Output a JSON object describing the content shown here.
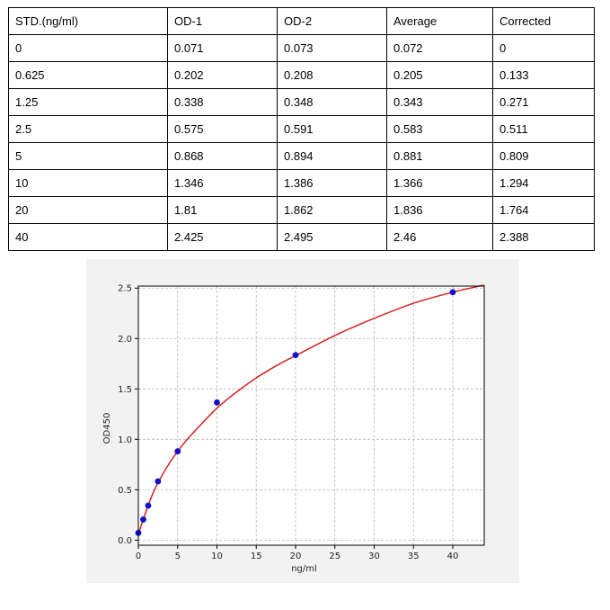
{
  "table": {
    "headers": [
      "STD.(ng/ml)",
      "OD-1",
      "OD-2",
      "Average",
      "Corrected"
    ],
    "rows": [
      [
        "0",
        "0.071",
        "0.073",
        "0.072",
        "0"
      ],
      [
        "0.625",
        "0.202",
        "0.208",
        "0.205",
        "0.133"
      ],
      [
        "1.25",
        "0.338",
        "0.348",
        "0.343",
        "0.271"
      ],
      [
        "2.5",
        "0.575",
        "0.591",
        "0.583",
        "0.511"
      ],
      [
        "5",
        "0.868",
        "0.894",
        "0.881",
        "0.809"
      ],
      [
        "10",
        "1.346",
        "1.386",
        "1.366",
        "1.294"
      ],
      [
        "20",
        "1.81",
        "1.862",
        "1.836",
        "1.764"
      ],
      [
        "40",
        "2.425",
        "2.495",
        "2.46",
        "2.388"
      ]
    ]
  },
  "chart_data": {
    "type": "scatter",
    "title": "",
    "xlabel": "ng/ml",
    "ylabel": "OD450",
    "xlim": [
      0,
      44
    ],
    "ylim": [
      -0.05,
      2.52
    ],
    "xticks": [
      "0",
      "5",
      "10",
      "15",
      "20",
      "25",
      "30",
      "35",
      "40"
    ],
    "xtick_values": [
      0,
      5,
      10,
      15,
      20,
      25,
      30,
      35,
      40
    ],
    "yticks": [
      "0.0",
      "0.5",
      "1.0",
      "1.5",
      "2.0",
      "2.5"
    ],
    "ytick_values": [
      0,
      0.5,
      1.0,
      1.5,
      2.0,
      2.5
    ],
    "grid": true,
    "points": {
      "x": [
        0,
        0.625,
        1.25,
        2.5,
        5,
        10,
        20,
        40
      ],
      "y": [
        0.072,
        0.205,
        0.343,
        0.583,
        0.881,
        1.366,
        1.836,
        2.46
      ]
    },
    "fit_curve": {
      "x": [
        0,
        1,
        2,
        3,
        4,
        5,
        6,
        8,
        10,
        12,
        15,
        18,
        20,
        25,
        30,
        35,
        40,
        44
      ],
      "y": [
        0.06,
        0.29,
        0.49,
        0.64,
        0.77,
        0.88,
        0.98,
        1.15,
        1.31,
        1.44,
        1.61,
        1.75,
        1.83,
        2.03,
        2.2,
        2.35,
        2.46,
        2.53
      ]
    },
    "colors": {
      "points": "#1010c8",
      "curve": "#d62020",
      "grid": "#b8b8b8",
      "plot_bg": "#ffffff",
      "panel_bg": "#f2f2f2"
    }
  }
}
